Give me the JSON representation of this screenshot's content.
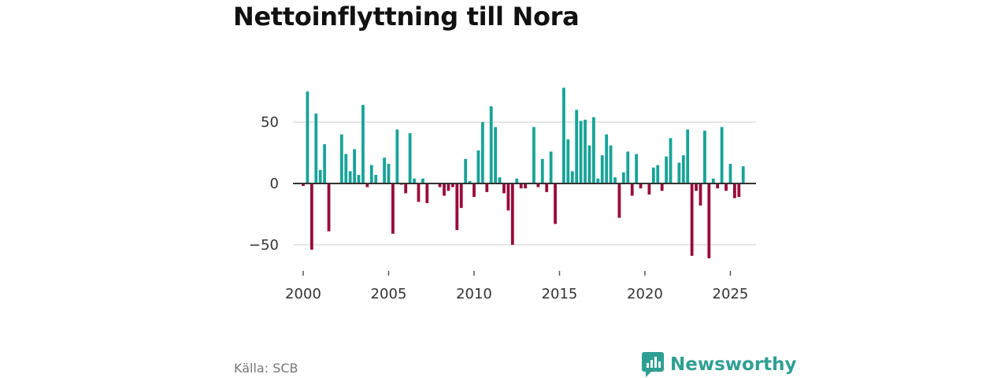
{
  "title": "Nettoinflyttning till Nora",
  "source": "Källa: SCB",
  "brand": "Newsworthy",
  "colors": {
    "positive": "#17a398",
    "negative": "#990a3b",
    "grid": "#dddddd",
    "zero": "#333333",
    "brand": "#2f9f93"
  },
  "chart_data": {
    "type": "bar",
    "title": "Nettoinflyttning till Nora",
    "xlabel": "",
    "ylabel": "",
    "ylim": [
      -70,
      95
    ],
    "xlim": [
      1999.4,
      2026.5
    ],
    "yticks": [
      50,
      0,
      -50
    ],
    "ytick_labels": [
      "50",
      "0",
      "−50"
    ],
    "xticks": [
      2000,
      2005,
      2010,
      2015,
      2020,
      2025
    ],
    "xtick_labels": [
      "2000",
      "2005",
      "2010",
      "2015",
      "2020",
      "2025"
    ],
    "grid": true,
    "x": [
      2000.0,
      2000.25,
      2000.5,
      2000.75,
      2001.0,
      2001.25,
      2001.5,
      2001.75,
      2002.0,
      2002.25,
      2002.5,
      2002.75,
      2003.0,
      2003.25,
      2003.5,
      2003.75,
      2004.0,
      2004.25,
      2004.5,
      2004.75,
      2005.0,
      2005.25,
      2005.5,
      2005.75,
      2006.0,
      2006.25,
      2006.5,
      2006.75,
      2007.0,
      2007.25,
      2007.5,
      2007.75,
      2008.0,
      2008.25,
      2008.5,
      2008.75,
      2009.0,
      2009.25,
      2009.5,
      2009.75,
      2010.0,
      2010.25,
      2010.5,
      2010.75,
      2011.0,
      2011.25,
      2011.5,
      2011.75,
      2012.0,
      2012.25,
      2012.5,
      2012.75,
      2013.0,
      2013.25,
      2013.5,
      2013.75,
      2014.0,
      2014.25,
      2014.5,
      2014.75,
      2015.0,
      2015.25,
      2015.5,
      2015.75,
      2016.0,
      2016.25,
      2016.5,
      2016.75,
      2017.0,
      2017.25,
      2017.5,
      2017.75,
      2018.0,
      2018.25,
      2018.5,
      2018.75,
      2019.0,
      2019.25,
      2019.5,
      2019.75,
      2020.0,
      2020.25,
      2020.5,
      2020.75,
      2021.0,
      2021.25,
      2021.5,
      2021.75,
      2022.0,
      2022.25,
      2022.5,
      2022.75,
      2023.0,
      2023.25,
      2023.5,
      2023.75,
      2024.0,
      2024.25,
      2024.5,
      2024.75,
      2025.0,
      2025.25,
      2025.5,
      2025.75
    ],
    "values": [
      -2,
      75,
      -54,
      57,
      11,
      32,
      -39,
      0,
      0,
      40,
      24,
      10,
      28,
      7,
      64,
      -3,
      15,
      7,
      0,
      21,
      16,
      -41,
      44,
      -1,
      -8,
      41,
      4,
      -15,
      4,
      -16,
      0,
      0,
      -3,
      -10,
      -6,
      -3,
      -38,
      -20,
      20,
      2,
      -11,
      27,
      50,
      -7,
      63,
      46,
      5,
      -8,
      -22,
      -50,
      4,
      -4,
      -4,
      0,
      46,
      -3,
      20,
      -7,
      26,
      -33,
      0,
      78,
      36,
      10,
      60,
      51,
      52,
      31,
      54,
      4,
      23,
      40,
      31,
      5,
      -28,
      9,
      26,
      -10,
      24,
      -4,
      0,
      -9,
      13,
      15,
      -6,
      22,
      37,
      0,
      17,
      23,
      44,
      -59,
      -6,
      -18,
      43,
      -61,
      4,
      -4,
      46,
      -6,
      16,
      -12,
      -11,
      14
    ]
  }
}
